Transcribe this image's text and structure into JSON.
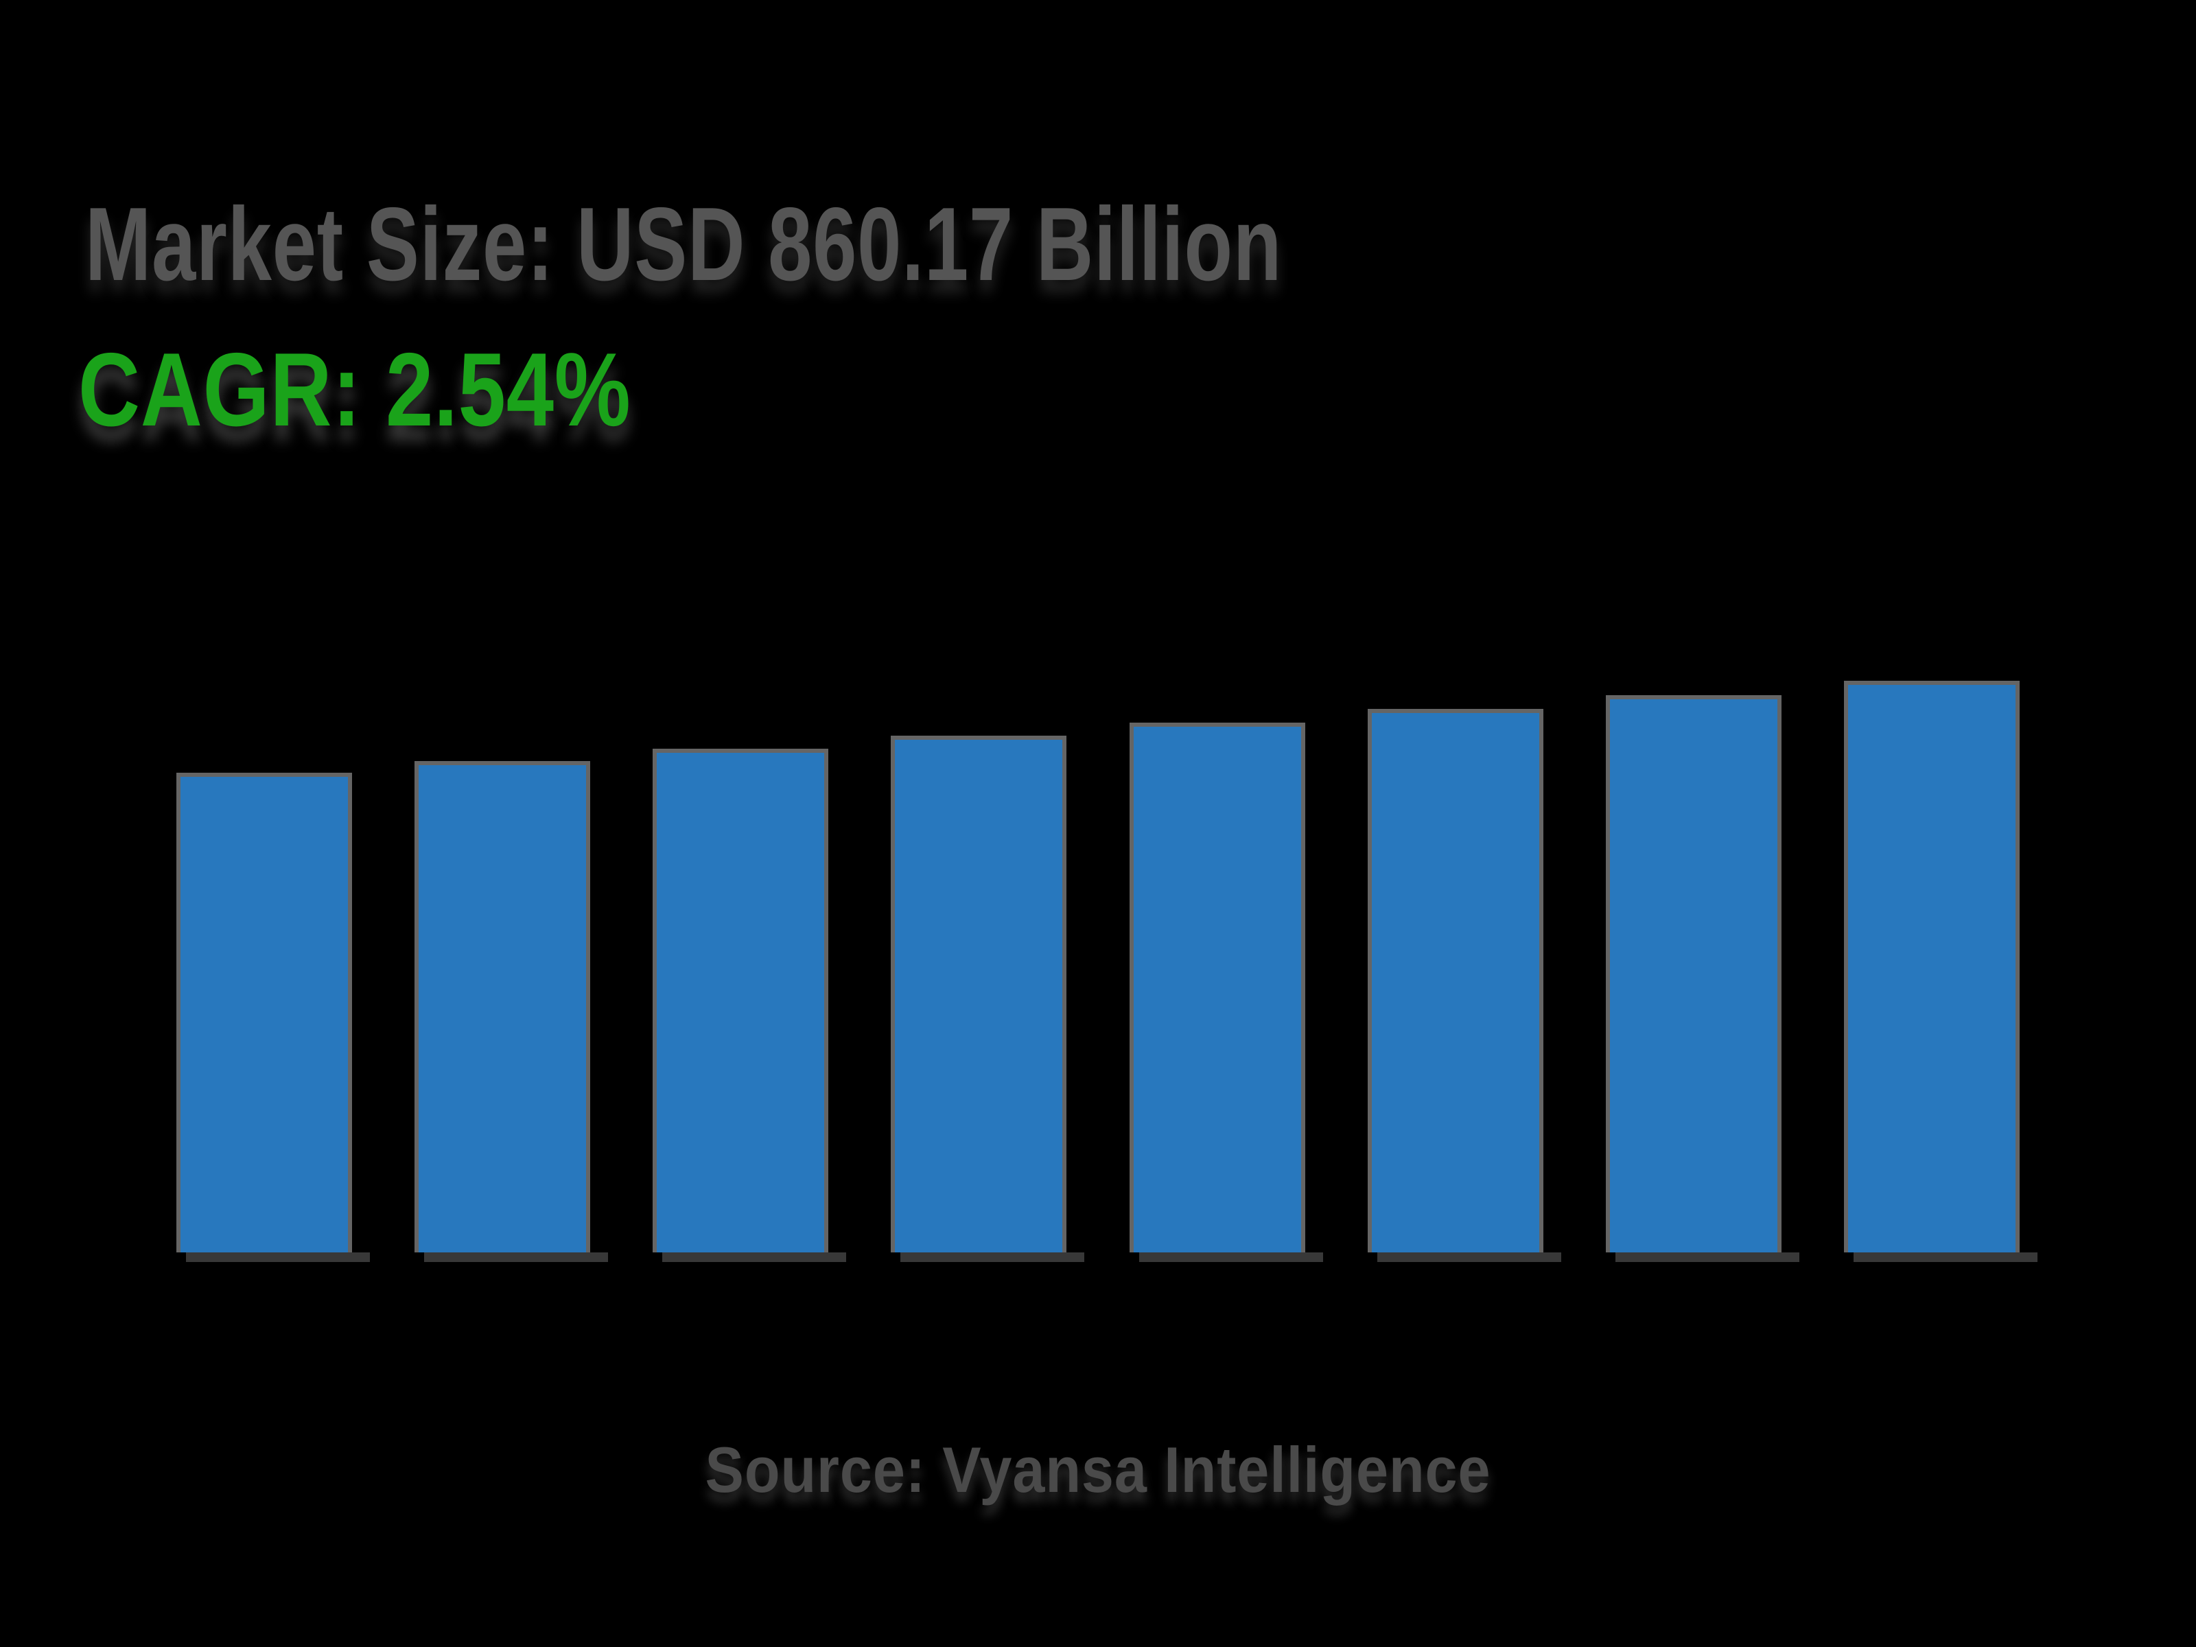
{
  "page": {
    "background_color": "#000000"
  },
  "header": {
    "title": "Market Size: USD 860.17 Billion",
    "title_color": "#555555",
    "cagr_label": "CAGR: 2.54%",
    "cagr_color": "#1AA31A"
  },
  "chart_data": {
    "type": "bar",
    "title": "Market Size: USD 860.17 Billion",
    "subtitle": "CAGR: 2.54%",
    "categories": [],
    "values": [
      721.66,
      739.99,
      758.78,
      778.05,
      797.81,
      818.08,
      838.86,
      860.17
    ],
    "values_estimated": true,
    "unit": "USD Billion",
    "xlabel": "",
    "ylabel": "",
    "ylim": [
      0,
      1033
    ],
    "grid": false,
    "legend": false,
    "axis_labels_visible": false,
    "bar_fill_color": "#2878BE",
    "bar_edge_color": "#656565",
    "bar_shadow_color": "#383838"
  },
  "footer": {
    "source": "Source: Vyansa Intelligence",
    "source_color": "#4A4A4A"
  }
}
